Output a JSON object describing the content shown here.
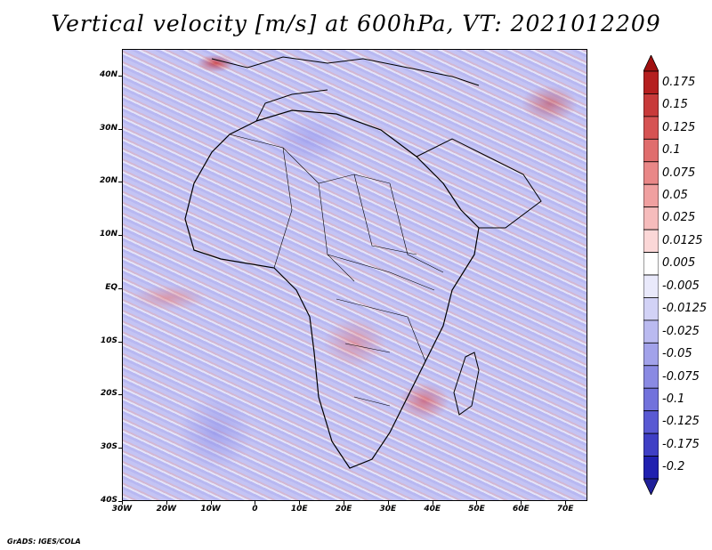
{
  "title": "Vertical velocity [m/s] at 600hPa, VT: 2021012209",
  "credit": "GrADS: IGES/COLA",
  "map": {
    "variable": "Vertical velocity",
    "units": "m/s",
    "level": "600hPa",
    "valid_time": "2021012209",
    "region": "Africa",
    "lon_range": [
      -30,
      75
    ],
    "lat_range": [
      -40,
      45
    ]
  },
  "lat_labels": [
    "40N",
    "30N",
    "20N",
    "10N",
    "EQ",
    "10S",
    "20S",
    "30S",
    "40S"
  ],
  "lat_values": [
    40,
    30,
    20,
    10,
    0,
    -10,
    -20,
    -30,
    -40
  ],
  "lon_labels": [
    "30W",
    "20W",
    "10W",
    "0",
    "10E",
    "20E",
    "30E",
    "40E",
    "50E",
    "60E",
    "70E"
  ],
  "lon_values": [
    -30,
    -20,
    -10,
    0,
    10,
    20,
    30,
    40,
    50,
    60,
    70
  ],
  "colorbar": {
    "labels": [
      "0.175",
      "0.15",
      "0.125",
      "0.1",
      "0.075",
      "0.05",
      "0.025",
      "0.0125",
      "0.005",
      "-0.005",
      "-0.0125",
      "-0.025",
      "-0.05",
      "-0.075",
      "-0.1",
      "-0.125",
      "-0.175",
      "-0.2"
    ],
    "colors": [
      "#b51f1f",
      "#c83a3a",
      "#d65353",
      "#e06d6d",
      "#e98787",
      "#f0a0a0",
      "#f6bcbc",
      "#fbd7d7",
      "#ffffff",
      "#e9e9fb",
      "#d2d2f6",
      "#babaf0",
      "#a2a2ea",
      "#8a8ae3",
      "#7272dc",
      "#5959d3",
      "#3f3fc5",
      "#2020b0"
    ],
    "top_arrow_color": "#a01010",
    "bottom_arrow_color": "#20209a"
  }
}
